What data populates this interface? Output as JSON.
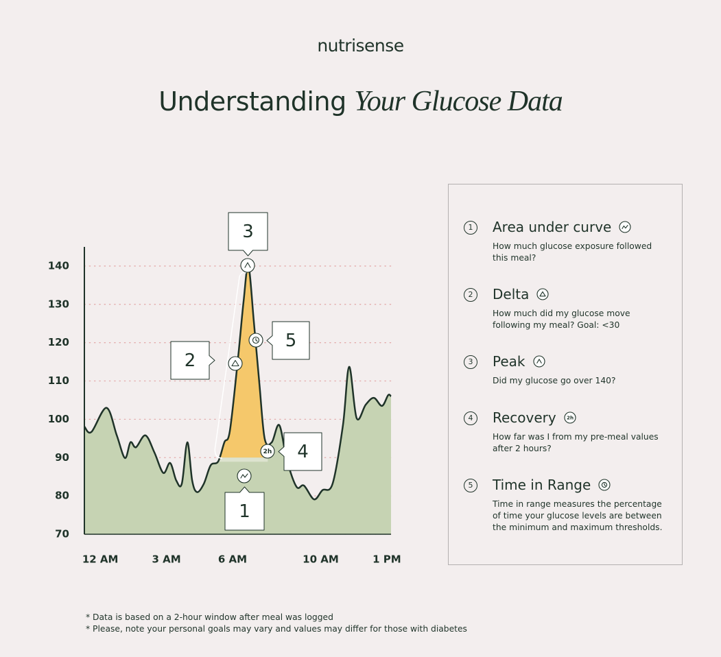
{
  "header": {
    "brand": "nutrisense",
    "title": "Understanding",
    "title_emphasis": "Your Glucose Data"
  },
  "chart_data": {
    "type": "area",
    "x": [
      -0.72,
      -0.4,
      0.28,
      0.75,
      1.12,
      1.37,
      1.62,
      2.05,
      2.46,
      2.86,
      3.17,
      3.45,
      3.7,
      3.95,
      4.17,
      4.39,
      4.7,
      5.01,
      5.35,
      5.63,
      5.88,
      6.25,
      6.5,
      6.72,
      6.97,
      7.22,
      7.46,
      7.78,
      8.12,
      8.46,
      8.9,
      9.24,
      9.7,
      10.08,
      10.54,
      11.01,
      11.29,
      11.63,
      12.04,
      12.41,
      12.78,
      13.06,
      13.19
    ],
    "series": [
      {
        "color": "#1f3329",
        "fill": "#c6d3b3",
        "values": [
          98.1,
          96.7,
          103,
          95.8,
          89.9,
          94,
          92.7,
          95.8,
          91.3,
          86,
          88.6,
          84,
          83.2,
          94,
          84,
          81,
          83.2,
          88,
          89,
          94,
          97,
          116,
          130.7,
          140,
          125.3,
          109.2,
          94.9,
          94,
          98.5,
          89.5,
          82.4,
          82.7,
          79.1,
          81.5,
          83.2,
          98.5,
          113.7,
          100.3,
          103.8,
          105.6,
          103.5,
          106.3,
          106
        ]
      }
    ],
    "xlim": [
      -0.72,
      13.19
    ],
    "xticks": [
      {
        "value": 0,
        "label": "12 AM"
      },
      {
        "value": 3,
        "label": "3 AM"
      },
      {
        "value": 6,
        "label": "6 AM"
      },
      {
        "value": 10,
        "label": "10 AM"
      },
      {
        "value": 13,
        "label": "1 PM"
      }
    ],
    "ylim": [
      70,
      145
    ],
    "yticks": [
      70,
      80,
      90,
      100,
      110,
      120,
      130,
      140
    ],
    "grid": true,
    "highlight": {
      "x": [
        5.4,
        7.6
      ],
      "baseline": 90,
      "color": "#f5c86b"
    },
    "annotations": [
      {
        "label": "1"
      },
      {
        "label": "2"
      },
      {
        "label": "3"
      },
      {
        "label": "4",
        "badge": "2h"
      },
      {
        "label": "5"
      }
    ]
  },
  "info_panel": {
    "items": [
      {
        "number": "1",
        "title": "Area under curve",
        "text": "How much glucose exposure followed this meal?"
      },
      {
        "number": "2",
        "title": "Delta",
        "text": "How much did my glucose move following my meal? Goal: <30"
      },
      {
        "number": "3",
        "title": "Peak",
        "text": "Did my glucose go over 140?"
      },
      {
        "number": "4",
        "title": "Recovery",
        "badge": "2h",
        "text": "How far was I from my pre-meal values after 2 hours?"
      },
      {
        "number": "5",
        "title": "Time in Range",
        "text": "Time in range measures the percentage of time your glucose levels are between the minimum and maximum thresholds."
      }
    ]
  },
  "footnotes": [
    "* Data is based on a 2-hour window after meal was logged",
    "* Please, note your personal goals may vary and values may differ for those with diabetes"
  ]
}
